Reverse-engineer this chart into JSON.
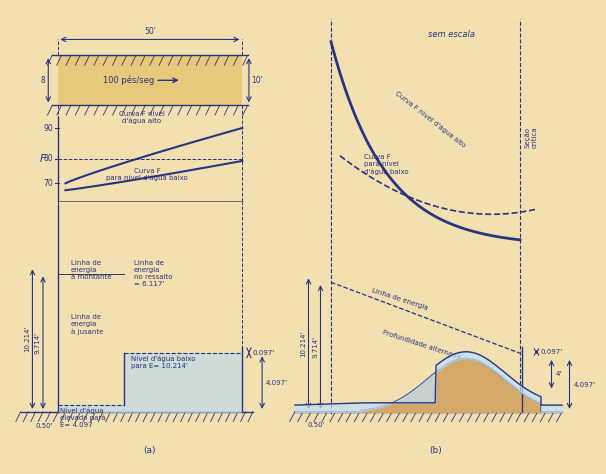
{
  "bg_color": "#f2e0b0",
  "line_color": "#2a3580",
  "water_color_a": "#b8d8f0",
  "water_color_b": "#c0e0f8",
  "channel_fill": "#e8c87a",
  "hump_fill": "#d4a868",
  "text_color": "#2a3580",
  "fig_bg": "#f2e0b0",
  "panel_a_label": "(a)",
  "panel_b_label": "(b)",
  "label_50": "50'",
  "label_8": "8",
  "label_10": "10'",
  "label_flow": "100 pés/seg",
  "label_90": "90",
  "label_80": "80",
  "label_70": "70",
  "label_F": "F",
  "curva_alto_a": "Curva F nível\nd'água alto",
  "curva_baixo_a": "Curva F\npara nível d'água baixo",
  "linha_montante": "Linha de\nenergia\nà montante",
  "linha_jusante": "Linha de\nenergia\nà jusante",
  "linha_ressalto": "Linha de\nenergia\nno ressalto\n= 6.117'",
  "nivel_elevado": "Nível d'água\nelevado pará\nE= 4.097",
  "nivel_baixo": "Nível d'água baixo\npara E= 10.214'",
  "val_10214": "10.214'",
  "val_9714": "9.714'",
  "val_097a": "0.097'",
  "val_4097a": "4.097'",
  "val_050": "0.50'",
  "sem_escala": "sem escala",
  "curva_alto_b": "Curva F nível d'água alto",
  "curva_baixo_b": "Curva F\npara nível\nd'água baixo",
  "linha_energia_b": "Linha de energia",
  "prof_alternada": "Profundidade alternada",
  "secao_critica": "Seção\ncrítica",
  "val_4": "4'",
  "val_097b": "0.097'",
  "val_4097b": "4.097'",
  "val_050b": "0.50'",
  "val_10214b": "10.214'",
  "val_9714b": "9.714'"
}
